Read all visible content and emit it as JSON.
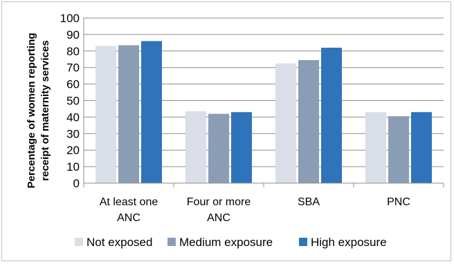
{
  "chart_data": {
    "type": "bar",
    "title": "",
    "ylabel_lines": [
      "Percentage of women reporting",
      "receipt of maternity services"
    ],
    "xlabel": "",
    "ylim": [
      0,
      100
    ],
    "yticks": [
      0,
      10,
      20,
      30,
      40,
      50,
      60,
      70,
      80,
      90,
      100
    ],
    "grid": true,
    "legend_position": "bottom",
    "categories": [
      [
        "At least one",
        "ANC"
      ],
      [
        "Four or more",
        "ANC"
      ],
      [
        "SBA"
      ],
      [
        "PNC"
      ]
    ],
    "series": [
      {
        "name": "Not exposed",
        "color": "#d9dee8",
        "values": [
          83,
          43.5,
          72.5,
          43
        ]
      },
      {
        "name": "Medium exposure",
        "color": "#8b9db4",
        "values": [
          83.5,
          42,
          74.5,
          40.5
        ]
      },
      {
        "name": "High exposure",
        "color": "#2f74ba",
        "values": [
          86,
          43,
          82,
          43
        ]
      }
    ]
  }
}
